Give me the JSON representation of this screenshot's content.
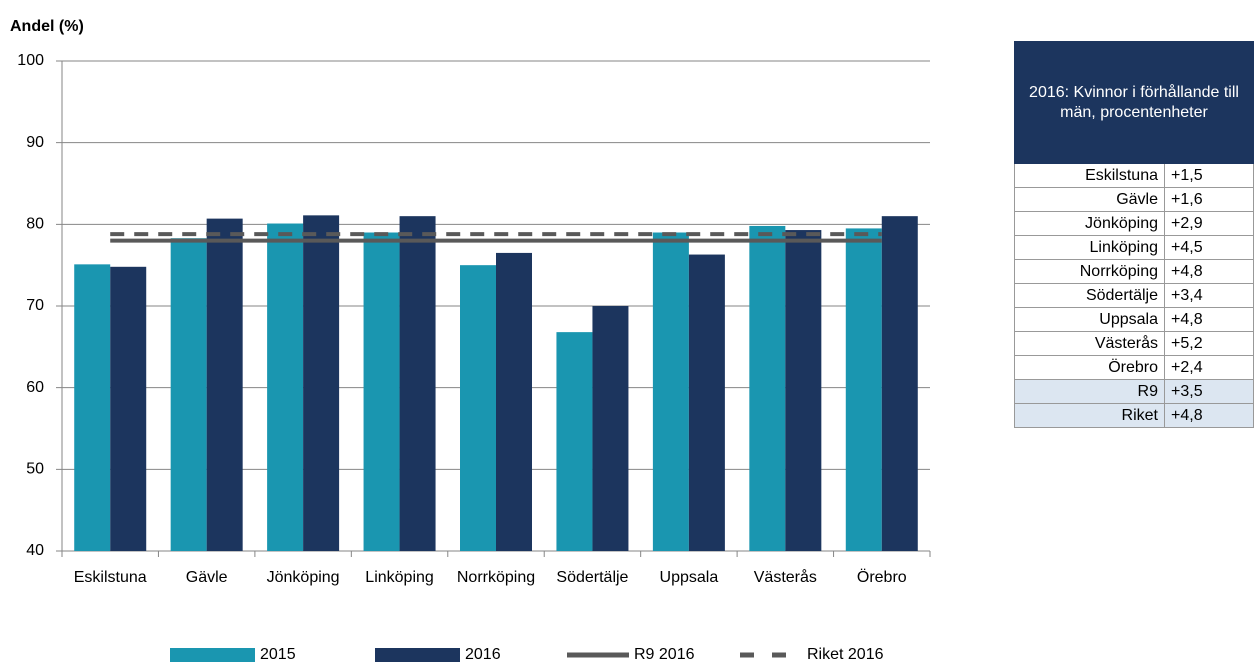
{
  "chart_data": {
    "type": "bar",
    "ylabel": "Andel (%)",
    "categories": [
      "Eskilstuna",
      "Gävle",
      "Jönköping",
      "Linköping",
      "Norrköping",
      "Södertälje",
      "Uppsala",
      "Västerås",
      "Örebro"
    ],
    "series": [
      {
        "name": "2015",
        "type": "bar",
        "color": "#1a96b0",
        "values": [
          75.1,
          78.3,
          80.1,
          79.0,
          75.0,
          66.8,
          79.0,
          79.8,
          79.5
        ]
      },
      {
        "name": "2016",
        "type": "bar",
        "color": "#1c355e",
        "values": [
          74.8,
          80.7,
          81.1,
          81.0,
          76.5,
          70.0,
          76.3,
          79.3,
          81.0
        ]
      },
      {
        "name": "R9 2016",
        "type": "line",
        "style": "solid",
        "color": "#595959",
        "values": [
          78.0,
          78.0,
          78.0,
          78.0,
          78.0,
          78.0,
          78.0,
          78.0,
          78.0
        ]
      },
      {
        "name": "Riket 2016",
        "type": "line",
        "style": "dashed",
        "color": "#595959",
        "values": [
          78.8,
          78.8,
          78.8,
          78.8,
          78.8,
          78.8,
          78.8,
          78.8,
          78.8
        ]
      }
    ],
    "ylim": [
      40,
      100
    ],
    "yticks": [
      40,
      50,
      60,
      70,
      80,
      90,
      100
    ],
    "grid": true,
    "legend": "bottom"
  },
  "table": {
    "header": "2016: Kvinnor i förhållande till män, procentenheter",
    "rows": [
      [
        "Eskilstuna",
        "+1,5"
      ],
      [
        "Gävle",
        "+1,6"
      ],
      [
        "Jönköping",
        "+2,9"
      ],
      [
        "Linköping",
        "+4,5"
      ],
      [
        "Norrköping",
        "+4,8"
      ],
      [
        "Södertälje",
        "+3,4"
      ],
      [
        "Uppsala",
        "+4,8"
      ],
      [
        "Västerås",
        "+5,2"
      ],
      [
        "Örebro",
        "+2,4"
      ]
    ],
    "summary_rows": [
      [
        "R9",
        "+3,5"
      ],
      [
        "Riket",
        "+4,8"
      ]
    ]
  }
}
